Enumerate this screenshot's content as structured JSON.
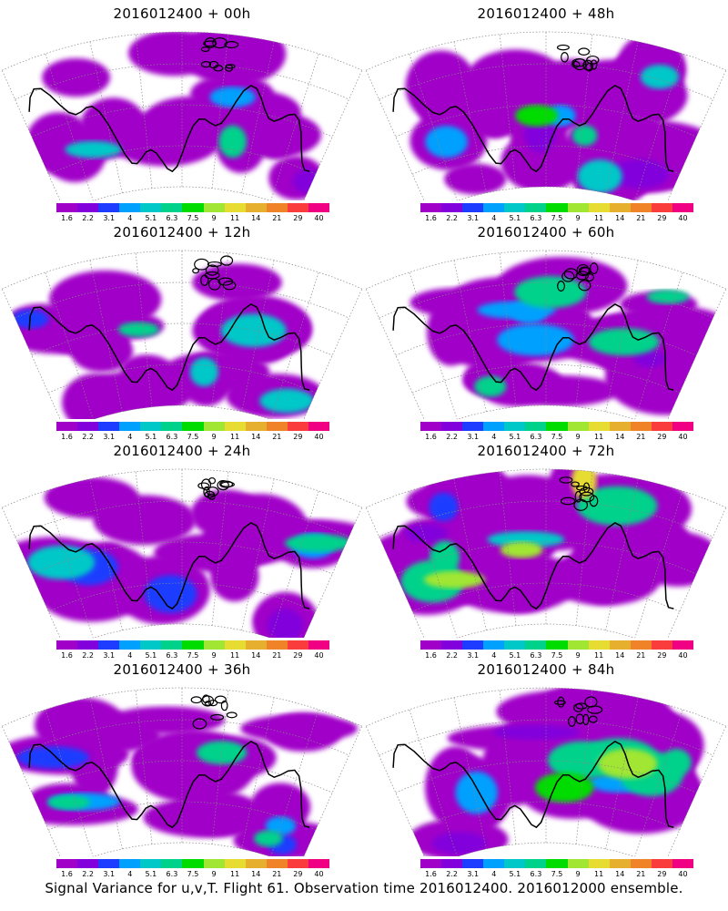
{
  "panels": [
    {
      "title": "2016012400 + 00h"
    },
    {
      "title": "2016012400 + 48h"
    },
    {
      "title": "2016012400 + 12h"
    },
    {
      "title": "2016012400 + 60h"
    },
    {
      "title": "2016012400 + 24h"
    },
    {
      "title": "2016012400 + 72h"
    },
    {
      "title": "2016012400 + 36h"
    },
    {
      "title": "2016012400 + 84h"
    }
  ],
  "colorbar": {
    "labels": [
      "1.6",
      "2.2",
      "3.1",
      "4",
      "5.1",
      "6.3",
      "7.5",
      "9",
      "11",
      "14",
      "21",
      "29",
      "40"
    ],
    "colors": [
      "#a000c8",
      "#8200dc",
      "#1e3cff",
      "#00a0ff",
      "#00c8c8",
      "#00d28c",
      "#00dc00",
      "#a0e632",
      "#e6dc32",
      "#e6af2d",
      "#f08228",
      "#fa3c3c",
      "#f00082"
    ]
  },
  "footer": "Signal Variance for u,v,T. Flight 61. Observation time 2016012400. 2016012000 ensemble."
}
